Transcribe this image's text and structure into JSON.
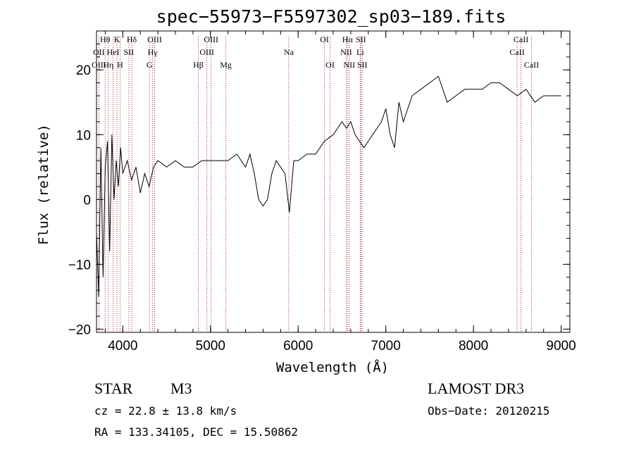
{
  "chart_data": {
    "type": "line",
    "title": "spec−55973−F5597302_sp03−189.fits",
    "xlabel": "Wavelength (Å)",
    "ylabel": "Flux (relative)",
    "xlim": [
      3700,
      9100
    ],
    "ylim": [
      -20.5,
      26
    ],
    "xticks": [
      4000,
      5000,
      6000,
      7000,
      8000,
      9000
    ],
    "xtick_labels": [
      "4000",
      "5000",
      "6000",
      "7000",
      "8000",
      "9000"
    ],
    "yticks": [
      -20,
      -10,
      0,
      10,
      20
    ],
    "ytick_labels": [
      "−20",
      "−10",
      "0",
      "10",
      "20"
    ],
    "series": [
      {
        "name": "flux",
        "x": [
          3700,
          3725,
          3750,
          3775,
          3800,
          3825,
          3850,
          3875,
          3900,
          3925,
          3950,
          3975,
          4000,
          4050,
          4100,
          4150,
          4200,
          4250,
          4300,
          4350,
          4400,
          4500,
          4600,
          4700,
          4800,
          4900,
          5000,
          5100,
          5200,
          5300,
          5400,
          5450,
          5500,
          5550,
          5600,
          5650,
          5700,
          5750,
          5800,
          5850,
          5900,
          5950,
          6000,
          6100,
          6200,
          6300,
          6400,
          6500,
          6550,
          6600,
          6650,
          6700,
          6750,
          6800,
          6850,
          6900,
          6950,
          7000,
          7050,
          7100,
          7150,
          7200,
          7300,
          7400,
          7500,
          7600,
          7650,
          7700,
          7800,
          7900,
          8000,
          8100,
          8200,
          8300,
          8400,
          8500,
          8600,
          8700,
          8800,
          8900,
          9000
        ],
        "y": [
          -5,
          -15,
          8,
          -12,
          5,
          9,
          -8,
          10,
          0,
          6,
          2,
          8,
          4,
          6,
          3,
          5,
          1,
          4,
          2,
          5,
          6,
          5,
          6,
          5,
          5,
          6,
          6,
          6,
          6,
          7,
          5,
          7,
          4,
          0,
          -1,
          0,
          4,
          6,
          5,
          4,
          -2,
          6,
          6,
          7,
          7,
          9,
          10,
          12,
          11,
          12,
          10,
          9,
          8,
          9,
          10,
          11,
          12,
          14,
          10,
          8,
          15,
          12,
          16,
          17,
          18,
          19,
          17,
          15,
          16,
          17,
          17,
          17,
          18,
          18,
          17,
          16,
          17,
          15,
          16,
          16,
          16
        ]
      }
    ],
    "spectral_lines": [
      {
        "label": "Hθ",
        "wavelength": 3798,
        "row": 0
      },
      {
        "label": "OII",
        "wavelength": 3727,
        "row": 1
      },
      {
        "label": "OIII",
        "wavelength": 3727,
        "row": 2
      },
      {
        "label": "K",
        "wavelength": 3934,
        "row": 0
      },
      {
        "label": "HeI",
        "wavelength": 3889,
        "row": 1
      },
      {
        "label": "Hη",
        "wavelength": 3835,
        "row": 2
      },
      {
        "label": "Hδ",
        "wavelength": 4102,
        "row": 0
      },
      {
        "label": "SII",
        "wavelength": 4069,
        "row": 1
      },
      {
        "label": "H",
        "wavelength": 3969,
        "row": 2
      },
      {
        "label": "OIII",
        "wavelength": 4363,
        "row": 0
      },
      {
        "label": "Hγ",
        "wavelength": 4340,
        "row": 1
      },
      {
        "label": "G",
        "wavelength": 4304,
        "row": 2
      },
      {
        "label": "OIII",
        "wavelength": 5007,
        "row": 0
      },
      {
        "label": "OIII",
        "wavelength": 4959,
        "row": 1
      },
      {
        "label": "Hβ",
        "wavelength": 4861,
        "row": 2
      },
      {
        "label": "Mg",
        "wavelength": 5175,
        "row": 2
      },
      {
        "label": "Na",
        "wavelength": 5893,
        "row": 1
      },
      {
        "label": "OI",
        "wavelength": 6300,
        "row": 0
      },
      {
        "label": "OI",
        "wavelength": 6364,
        "row": 2
      },
      {
        "label": "Hα",
        "wavelength": 6563,
        "row": 0
      },
      {
        "label": "SII",
        "wavelength": 6716,
        "row": 0
      },
      {
        "label": "NII",
        "wavelength": 6548,
        "row": 1
      },
      {
        "label": "Li",
        "wavelength": 6708,
        "row": 1
      },
      {
        "label": "NII",
        "wavelength": 6583,
        "row": 2
      },
      {
        "label": "SII",
        "wavelength": 6731,
        "row": 2
      },
      {
        "label": "CaII",
        "wavelength": 8542,
        "row": 0
      },
      {
        "label": "CaII",
        "wavelength": 8498,
        "row": 1
      },
      {
        "label": "CaII",
        "wavelength": 8662,
        "row": 2
      }
    ],
    "line_color": "#b22222",
    "spectrum_color": "#000000"
  },
  "info": {
    "class": "STAR",
    "subclass": "M3",
    "survey": "LAMOST DR3",
    "cz": "cz = 22.8 ± 13.8 km/s",
    "obs_date": "Obs−Date: 20120215",
    "coords": "RA = 133.34105, DEC =  15.50862"
  }
}
